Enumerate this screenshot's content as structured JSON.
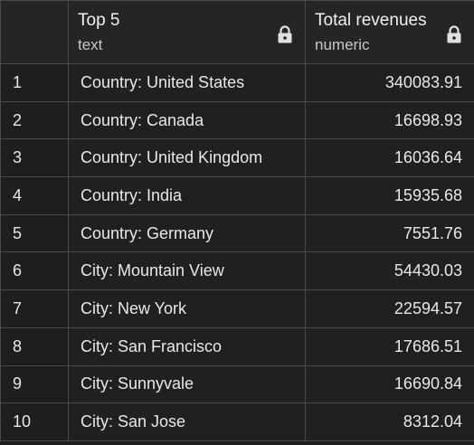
{
  "columns": {
    "name": {
      "title": "Top 5",
      "type": "text"
    },
    "value": {
      "title": "Total revenues",
      "type": "numeric"
    }
  },
  "rows": [
    {
      "index": "1",
      "name": "Country: United States",
      "value": "340083.91"
    },
    {
      "index": "2",
      "name": "Country: Canada",
      "value": "16698.93"
    },
    {
      "index": "3",
      "name": "Country: United Kingdom",
      "value": "16036.64"
    },
    {
      "index": "4",
      "name": "Country: India",
      "value": "15935.68"
    },
    {
      "index": "5",
      "name": "Country: Germany",
      "value": "7551.76"
    },
    {
      "index": "6",
      "name": "City: Mountain View",
      "value": "54430.03"
    },
    {
      "index": "7",
      "name": "City: New York",
      "value": "22594.57"
    },
    {
      "index": "8",
      "name": "City: San Francisco",
      "value": "17686.51"
    },
    {
      "index": "9",
      "name": "City: Sunnyvale",
      "value": "16690.84"
    },
    {
      "index": "10",
      "name": "City: San Jose",
      "value": "8312.04"
    }
  ],
  "icons": {
    "column_lock": "lock-icon"
  },
  "colors": {
    "background": "#1e1e1e",
    "grid_line": "#4a4a4a",
    "text": "#e8e8e8"
  }
}
